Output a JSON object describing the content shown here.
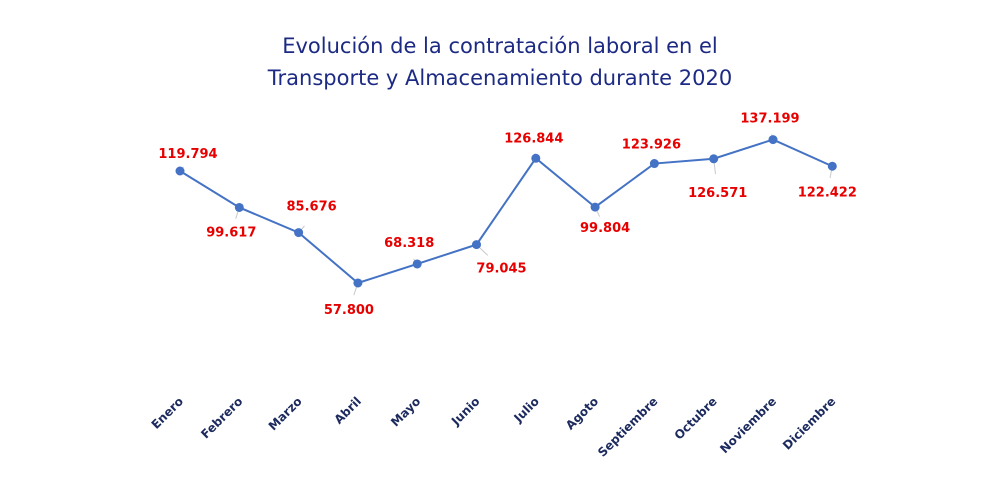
{
  "chart_data": {
    "type": "line",
    "title_lines": [
      "Evolución de la contratación laboral en el",
      "Transporte y Almacenamiento durante 2020"
    ],
    "categories": [
      "Enero",
      "Febrero",
      "Marzo",
      "Abril",
      "Mayo",
      "Junio",
      "Julio",
      "Agoto",
      "Septiembre",
      "Octubre",
      "Noviembre",
      "Diciembre"
    ],
    "values": [
      119794,
      99617,
      85676,
      57800,
      68318,
      79045,
      126844,
      99804,
      123926,
      126571,
      137199,
      122422
    ],
    "data_labels": [
      "119.794",
      "99.617",
      "85.676",
      "57.800",
      "68.318",
      "79.045",
      "126.844",
      "99.804",
      "123.926",
      "126.571",
      "137.199",
      "122.422"
    ],
    "xlabel": "",
    "ylabel": "",
    "grid": false,
    "legend": "none",
    "colors": {
      "line": "#4472c4",
      "marker": "#4472c4",
      "data_label": "#e60000",
      "title": "#1c2a83",
      "tick_label": "#1c2a5e"
    }
  }
}
